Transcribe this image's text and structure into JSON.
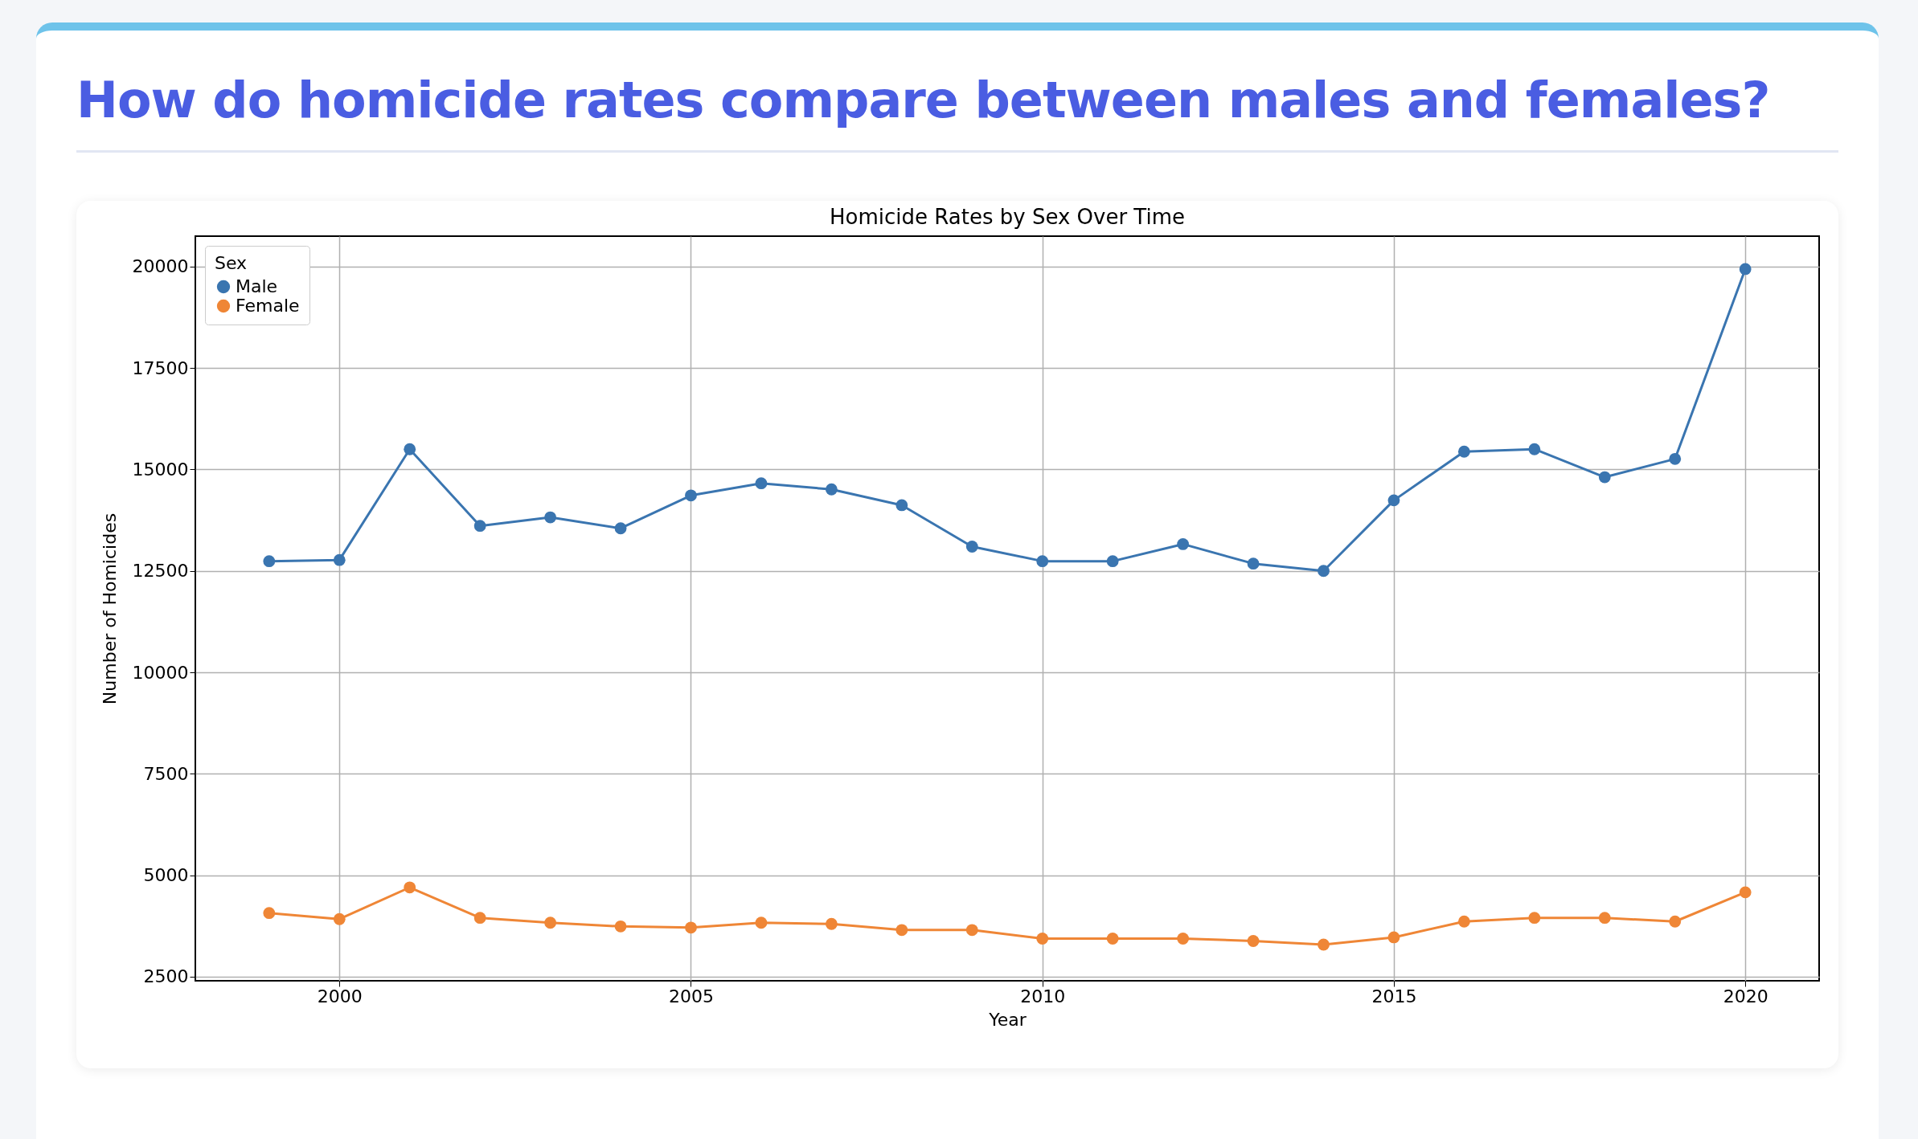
{
  "chart_data": {
    "type": "line",
    "title": "Homicide Rates by Sex Over Time",
    "xlabel": "Year",
    "ylabel": "Number of Homicides",
    "legend_title": "Sex",
    "annotations": [
      "How do homicide rates compare between males and females?"
    ],
    "x": [
      1999,
      2000,
      2001,
      2002,
      2003,
      2004,
      2005,
      2006,
      2007,
      2008,
      2009,
      2010,
      2011,
      2012,
      2013,
      2014,
      2015,
      2016,
      2017,
      2018,
      2019,
      2020
    ],
    "series": [
      {
        "name": "Male",
        "color": "#3a75b0",
        "values": [
          12740,
          12770,
          15500,
          13610,
          13820,
          13550,
          14360,
          14660,
          14510,
          14120,
          13100,
          12740,
          12740,
          13160,
          12680,
          12500,
          14240,
          15440,
          15500,
          14810,
          15260,
          19940
        ]
      },
      {
        "name": "Female",
        "color": "#ef8636",
        "values": [
          4070,
          3920,
          4700,
          3950,
          3830,
          3740,
          3710,
          3830,
          3800,
          3650,
          3650,
          3440,
          3440,
          3440,
          3380,
          3290,
          3470,
          3860,
          3950,
          3950,
          3860,
          4580
        ]
      }
    ],
    "xlim": [
      1997.95,
      2021.05
    ],
    "xticks": [
      2000,
      2005,
      2010,
      2015,
      2020
    ],
    "ylim": [
      2400,
      20750
    ],
    "yticks": [
      2500,
      5000,
      7500,
      10000,
      12500,
      15000,
      17500,
      20000
    ],
    "grid": true,
    "legend": "top left",
    "marker": "circle",
    "line_style": "solid"
  }
}
